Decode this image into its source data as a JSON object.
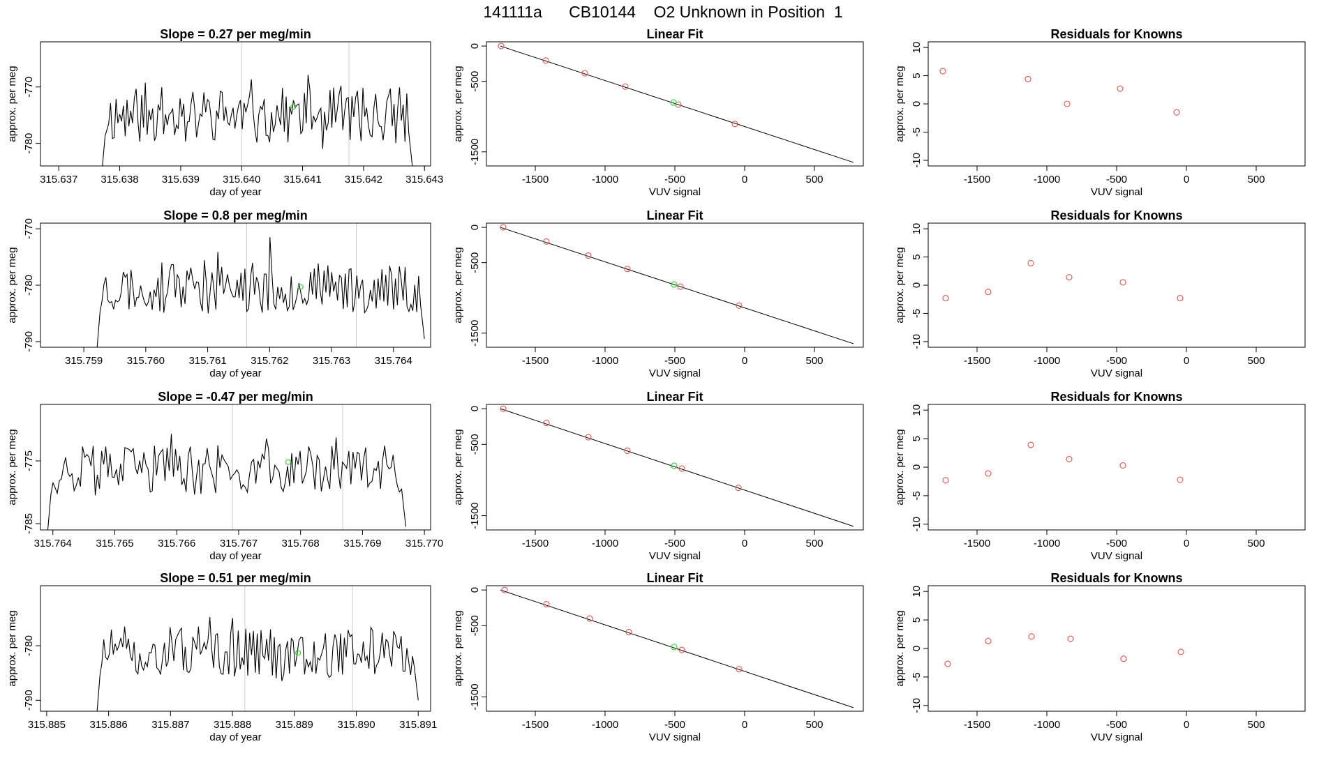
{
  "figure": {
    "title": "141111a      CB10144    O2 Unknown in Position  1",
    "colors": {
      "trace": "#000000",
      "known_point": "#d9534f",
      "unknown_point": "#35d435",
      "marker_line": "#cccccc"
    }
  },
  "chart_data": [
    {
      "type": "line",
      "row": 0,
      "col": 0,
      "title": "Slope =  0.27  per meg/min",
      "xlabel": "day of year",
      "ylabel": "approx. per meg",
      "xlim": [
        315.6367,
        315.6431
      ],
      "ylim": [
        -784,
        -762
      ],
      "xticks": [
        315.637,
        315.638,
        315.639,
        315.64,
        315.641,
        315.642,
        315.643
      ],
      "xtick_labels": [
        "315.637",
        "315.638",
        "315.639",
        "315.640",
        "315.641",
        "315.642",
        "315.643"
      ],
      "yticks": [
        -780,
        -770
      ],
      "ytick_labels": [
        "-780",
        "-770"
      ],
      "markers_x": [
        315.64,
        315.64176
      ],
      "unknown_point": {
        "x": 315.64085,
        "y": -773.5
      },
      "seed": 11,
      "trace_x": [
        315.6377,
        315.6428
      ],
      "trace_mean": -775,
      "trace_amp": 5
    },
    {
      "type": "scatter",
      "row": 0,
      "col": 1,
      "title": "Linear Fit",
      "xlabel": "VUV signal",
      "ylabel": "approx. per meg",
      "xlim": [
        -1850,
        850
      ],
      "ylim": [
        -1700,
        60
      ],
      "xticks": [
        -1500,
        -1000,
        -500,
        0,
        500
      ],
      "xtick_labels": [
        "-1500",
        "-1000",
        "-500",
        "0",
        "500"
      ],
      "yticks": [
        -1500,
        -500,
        0
      ],
      "ytick_labels": [
        "-1500",
        "-500",
        "0"
      ],
      "fit_line": {
        "x": [
          -1750,
          780
        ],
        "y": [
          0,
          -1650
        ]
      },
      "knowns": {
        "x": [
          -1745,
          -1425,
          -1145,
          -855,
          -475,
          -70
        ],
        "y": [
          0,
          -205,
          -385,
          -575,
          -830,
          -1105
        ]
      },
      "unknown": {
        "x": -510,
        "y": -800
      }
    },
    {
      "type": "scatter",
      "row": 0,
      "col": 2,
      "title": "Residuals for Knowns",
      "xlabel": "VUV signal",
      "ylabel": "approx. per meg",
      "xlim": [
        -1850,
        850
      ],
      "ylim": [
        -11,
        11
      ],
      "xticks": [
        -1500,
        -1000,
        -500,
        0,
        500
      ],
      "xtick_labels": [
        "-1500",
        "-1000",
        "-500",
        "0",
        "500"
      ],
      "yticks": [
        -10,
        -5,
        0,
        5,
        10
      ],
      "ytick_labels": [
        "-10",
        "-5",
        "0",
        "5",
        "10"
      ],
      "knowns": {
        "x": [
          -1745,
          -1135,
          -855,
          -475,
          -70
        ],
        "y": [
          5.8,
          4.4,
          0.0,
          2.7,
          -1.5
        ]
      }
    },
    {
      "type": "line",
      "row": 1,
      "col": 0,
      "title": "Slope =  0.8  per meg/min",
      "xlabel": "day of year",
      "ylabel": "approx. per meg",
      "xlim": [
        315.7583,
        315.7646
      ],
      "ylim": [
        -791,
        -769
      ],
      "xticks": [
        315.759,
        315.76,
        315.761,
        315.762,
        315.763,
        315.764
      ],
      "xtick_labels": [
        "315.759",
        "315.760",
        "315.761",
        "315.762",
        "315.763",
        "315.764"
      ],
      "yticks": [
        -790,
        -780,
        -770
      ],
      "ytick_labels": [
        "-790",
        "-780",
        "-770"
      ],
      "markers_x": [
        315.76163,
        315.7634
      ],
      "unknown_point": {
        "x": 315.7625,
        "y": -780.3
      },
      "seed": 23,
      "trace_x": [
        315.7592,
        315.7645
      ],
      "trace_mean": -780.5,
      "trace_amp": 4.5
    },
    {
      "type": "scatter",
      "row": 1,
      "col": 1,
      "title": "Linear Fit",
      "xlabel": "VUV signal",
      "ylabel": "approx. per meg",
      "xlim": [
        -1850,
        850
      ],
      "ylim": [
        -1700,
        60
      ],
      "xticks": [
        -1500,
        -1000,
        -500,
        0,
        500
      ],
      "xtick_labels": [
        "-1500",
        "-1000",
        "-500",
        "0",
        "500"
      ],
      "yticks": [
        -1500,
        -500,
        0
      ],
      "ytick_labels": [
        "-1500",
        "-500",
        "0"
      ],
      "fit_line": {
        "x": [
          -1750,
          780
        ],
        "y": [
          0,
          -1650
        ]
      },
      "knowns": {
        "x": [
          -1730,
          -1420,
          -1120,
          -840,
          -460,
          -40
        ],
        "y": [
          0,
          -200,
          -400,
          -590,
          -840,
          -1110
        ]
      },
      "unknown": {
        "x": -505,
        "y": -810
      }
    },
    {
      "type": "scatter",
      "row": 1,
      "col": 2,
      "title": "Residuals for Knowns",
      "xlabel": "VUV signal",
      "ylabel": "approx. per meg",
      "xlim": [
        -1850,
        850
      ],
      "ylim": [
        -11,
        11
      ],
      "xticks": [
        -1500,
        -1000,
        -500,
        0,
        500
      ],
      "xtick_labels": [
        "-1500",
        "-1000",
        "-500",
        "0",
        "500"
      ],
      "yticks": [
        -10,
        -5,
        0,
        5,
        10
      ],
      "ytick_labels": [
        "-10",
        "-5",
        "0",
        "5",
        "10"
      ],
      "knowns": {
        "x": [
          -1725,
          -1420,
          -1115,
          -840,
          -455,
          -45
        ],
        "y": [
          -2.3,
          -1.2,
          3.9,
          1.4,
          0.5,
          -2.3
        ]
      }
    },
    {
      "type": "line",
      "row": 2,
      "col": 0,
      "title": "Slope =  -0.47  per meg/min",
      "xlabel": "day of year",
      "ylabel": "approx. per meg",
      "xlim": [
        315.7638,
        315.7701
      ],
      "ylim": [
        -786,
        -766
      ],
      "xticks": [
        315.764,
        315.765,
        315.766,
        315.767,
        315.768,
        315.769,
        315.77
      ],
      "xtick_labels": [
        "315.764",
        "315.765",
        "315.766",
        "315.767",
        "315.768",
        "315.769",
        "315.770"
      ],
      "yticks": [
        -785,
        -775
      ],
      "ytick_labels": [
        "-785",
        "-775"
      ],
      "markers_x": [
        315.7669,
        315.76868
      ],
      "unknown_point": {
        "x": 315.7678,
        "y": -775.2
      },
      "seed": 37,
      "trace_x": [
        315.7639,
        315.7697
      ],
      "trace_mean": -776.5,
      "trace_amp": 4
    },
    {
      "type": "scatter",
      "row": 2,
      "col": 1,
      "title": "Linear Fit",
      "xlabel": "VUV signal",
      "ylabel": "approx. per meg",
      "xlim": [
        -1850,
        850
      ],
      "ylim": [
        -1700,
        60
      ],
      "xticks": [
        -1500,
        -1000,
        -500,
        0,
        500
      ],
      "xtick_labels": [
        "-1500",
        "-1000",
        "-500",
        "0",
        "500"
      ],
      "yticks": [
        -1500,
        -500,
        0
      ],
      "ytick_labels": [
        "-1500",
        "-500",
        "0"
      ],
      "fit_line": {
        "x": [
          -1750,
          780
        ],
        "y": [
          0,
          -1650
        ]
      },
      "knowns": {
        "x": [
          -1730,
          -1420,
          -1120,
          -840,
          -450,
          -45
        ],
        "y": [
          0,
          -200,
          -400,
          -590,
          -840,
          -1110
        ]
      },
      "unknown": {
        "x": -505,
        "y": -800
      }
    },
    {
      "type": "scatter",
      "row": 2,
      "col": 2,
      "title": "Residuals for Knowns",
      "xlabel": "VUV signal",
      "ylabel": "approx. per meg",
      "xlim": [
        -1850,
        850
      ],
      "ylim": [
        -11,
        11
      ],
      "xticks": [
        -1500,
        -1000,
        -500,
        0,
        500
      ],
      "xtick_labels": [
        "-1500",
        "-1000",
        "-500",
        "0",
        "500"
      ],
      "yticks": [
        -10,
        -5,
        0,
        5,
        10
      ],
      "ytick_labels": [
        "-10",
        "-5",
        "0",
        "5",
        "10"
      ],
      "knowns": {
        "x": [
          -1725,
          -1420,
          -1115,
          -840,
          -455,
          -45
        ],
        "y": [
          -2.3,
          -1.1,
          3.9,
          1.4,
          0.3,
          -2.2
        ]
      }
    },
    {
      "type": "line",
      "row": 3,
      "col": 0,
      "title": "Slope =  0.51  per meg/min",
      "xlabel": "day of year",
      "ylabel": "approx. per meg",
      "xlim": [
        315.8849,
        315.8912
      ],
      "ylim": [
        -792,
        -769
      ],
      "xticks": [
        315.885,
        315.886,
        315.887,
        315.888,
        315.889,
        315.89,
        315.891
      ],
      "xtick_labels": [
        "315.885",
        "315.886",
        "315.887",
        "315.888",
        "315.889",
        "315.890",
        "315.891"
      ],
      "yticks": [
        -790,
        -780
      ],
      "ytick_labels": [
        "-790",
        "-780"
      ],
      "markers_x": [
        315.8882,
        315.88994
      ],
      "unknown_point": {
        "x": 315.88906,
        "y": -781.3
      },
      "seed": 51,
      "trace_x": [
        315.8858,
        315.891
      ],
      "trace_mean": -781,
      "trace_amp": 4.5
    },
    {
      "type": "scatter",
      "row": 3,
      "col": 1,
      "title": "Linear Fit",
      "xlabel": "VUV signal",
      "ylabel": "approx. per meg",
      "xlim": [
        -1850,
        850
      ],
      "ylim": [
        -1700,
        60
      ],
      "xticks": [
        -1500,
        -1000,
        -500,
        0,
        500
      ],
      "xtick_labels": [
        "-1500",
        "-1000",
        "-500",
        "0",
        "500"
      ],
      "yticks": [
        -1500,
        -500,
        0
      ],
      "ytick_labels": [
        "-1500",
        "-500",
        "0"
      ],
      "fit_line": {
        "x": [
          -1750,
          780
        ],
        "y": [
          0,
          -1650
        ]
      },
      "knowns": {
        "x": [
          -1720,
          -1420,
          -1110,
          -830,
          -450,
          -40
        ],
        "y": [
          0,
          -200,
          -400,
          -590,
          -840,
          -1110
        ]
      },
      "unknown": {
        "x": -505,
        "y": -800
      }
    },
    {
      "type": "scatter",
      "row": 3,
      "col": 2,
      "title": "Residuals for Knowns",
      "xlabel": "VUV signal",
      "ylabel": "approx. per meg",
      "xlim": [
        -1850,
        850
      ],
      "ylim": [
        -11,
        11
      ],
      "xticks": [
        -1500,
        -1000,
        -500,
        0,
        500
      ],
      "xtick_labels": [
        "-1500",
        "-1000",
        "-500",
        "0",
        "500"
      ],
      "yticks": [
        -10,
        -5,
        0,
        5,
        10
      ],
      "ytick_labels": [
        "-10",
        "-5",
        "0",
        "5",
        "10"
      ],
      "knowns": {
        "x": [
          -1710,
          -1420,
          -1110,
          -830,
          -450,
          -40
        ],
        "y": [
          -2.7,
          1.3,
          2.1,
          1.7,
          -1.8,
          -0.6
        ]
      }
    }
  ]
}
